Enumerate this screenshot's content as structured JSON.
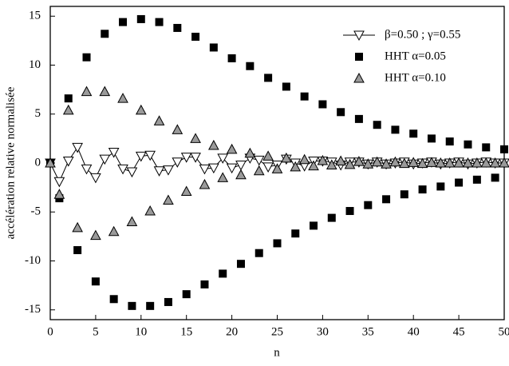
{
  "chart_data": {
    "type": "scatter",
    "x_label": "n",
    "y_label": "accélération relative normalisée",
    "x": [
      0,
      1,
      2,
      3,
      4,
      5,
      6,
      7,
      8,
      9,
      10,
      11,
      12,
      13,
      14,
      15,
      16,
      17,
      18,
      19,
      20,
      21,
      22,
      23,
      24,
      25,
      26,
      27,
      28,
      29,
      30,
      31,
      32,
      33,
      34,
      35,
      36,
      37,
      38,
      39,
      40,
      41,
      42,
      43,
      44,
      45,
      46,
      47,
      48,
      49,
      50
    ],
    "series": [
      {
        "name": "β=0.50 ; γ=0.55",
        "color": "#ffffff",
        "marker": "triangle-down",
        "line": true,
        "values": [
          0,
          -1.9,
          0.2,
          1.6,
          -0.6,
          -1.5,
          0.4,
          1.1,
          -0.6,
          -0.9,
          0.7,
          0.8,
          -0.8,
          -0.7,
          0.1,
          0.6,
          0.6,
          -0.6,
          -0.5,
          0.5,
          -0.5,
          -0.2,
          0.5,
          0.3,
          -0.4,
          -0.2,
          0.4,
          0,
          -0.3,
          0.2,
          0.2,
          0.1,
          -0.2,
          0.1,
          0.1,
          -0.1,
          0.1,
          -0.1,
          0,
          0.1,
          -0.1,
          0,
          0.1,
          -0.1,
          0,
          0.1,
          -0.1,
          0,
          0.1,
          0,
          0
        ]
      },
      {
        "name": "HHT α=0.05",
        "color": "#000000",
        "marker": "square",
        "line": false,
        "values": [
          0,
          -3.6,
          6.6,
          -8.9,
          10.8,
          -12.1,
          13.2,
          -13.9,
          14.4,
          -14.6,
          14.7,
          -14.6,
          14.4,
          -14.2,
          13.8,
          -13.4,
          12.9,
          -12.4,
          11.8,
          -11.3,
          10.7,
          -10.3,
          9.9,
          -9.2,
          8.7,
          -8.2,
          7.8,
          -7.2,
          6.8,
          -6.4,
          6.0,
          -5.6,
          5.2,
          -4.9,
          4.5,
          -4.3,
          3.9,
          -3.7,
          3.4,
          -3.2,
          3.0,
          -2.7,
          2.5,
          -2.4,
          2.2,
          -2.0,
          1.9,
          -1.7,
          1.6,
          -1.5,
          1.4
        ]
      },
      {
        "name": "HHT α=0.10",
        "color": "#9a9a9a",
        "marker": "triangle-up",
        "line": false,
        "values": [
          0,
          -3.2,
          5.4,
          -6.6,
          7.3,
          -7.4,
          7.3,
          -7.0,
          6.6,
          -6.0,
          5.4,
          -4.9,
          4.3,
          -3.8,
          3.4,
          -2.9,
          2.5,
          -2.2,
          1.8,
          -1.5,
          1.4,
          -1.2,
          1.0,
          -0.8,
          0.7,
          -0.6,
          0.5,
          -0.4,
          0.35,
          -0.3,
          0.25,
          -0.2,
          0.2,
          -0.15,
          0.15,
          -0.1,
          0.1,
          -0.1,
          0.1,
          -0.05,
          0.05,
          -0.05,
          0.05,
          0,
          0,
          0,
          0,
          0,
          0,
          0,
          0
        ]
      }
    ],
    "xlim": [
      0,
      50
    ],
    "xticks": [
      0,
      5,
      10,
      15,
      20,
      25,
      30,
      35,
      40,
      45,
      50
    ],
    "ylim": [
      -16,
      16
    ],
    "yticks": [
      -15,
      -10,
      -5,
      0,
      5,
      10,
      15
    ],
    "legend": "upper right"
  }
}
